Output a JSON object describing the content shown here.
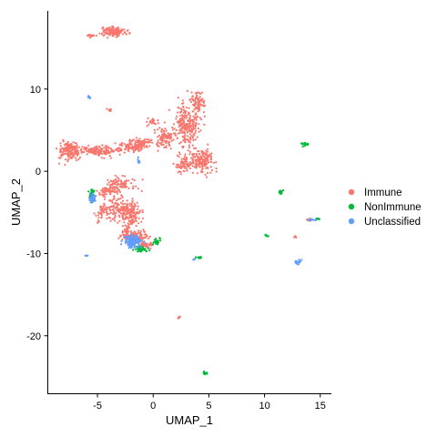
{
  "chart_data": {
    "type": "scatter",
    "xlabel": "UMAP_1",
    "ylabel": "UMAP_2",
    "xlim": [
      -9.5,
      16
    ],
    "ylim": [
      -27,
      19.5
    ],
    "x_ticks": [
      -5,
      0,
      5,
      10,
      15
    ],
    "y_ticks": [
      10,
      0,
      -10,
      -20
    ],
    "grid": false,
    "legend_position": "right",
    "series": [
      {
        "name": "Immune",
        "color": "#F8766D",
        "clusters": [
          {
            "x": -3.5,
            "y": 17,
            "sx": 0.9,
            "sy": 0.5,
            "n": 140
          },
          {
            "x": -5.5,
            "y": 16.5,
            "sx": 0.5,
            "sy": 0.15,
            "n": 20
          },
          {
            "x": -4.0,
            "y": 7.5,
            "sx": 0.2,
            "sy": 0.2,
            "n": 8
          },
          {
            "x": -7.5,
            "y": 2.5,
            "sx": 0.9,
            "sy": 1.0,
            "n": 160
          },
          {
            "x": -5.0,
            "y": 2.5,
            "sx": 1.5,
            "sy": 0.5,
            "n": 140
          },
          {
            "x": -2.0,
            "y": 3.0,
            "sx": 1.2,
            "sy": 0.6,
            "n": 100
          },
          {
            "x": -1.0,
            "y": 3.5,
            "sx": 0.8,
            "sy": 0.5,
            "n": 60
          },
          {
            "x": 1.0,
            "y": 4.0,
            "sx": 0.9,
            "sy": 1.2,
            "n": 90
          },
          {
            "x": 3.0,
            "y": 5.5,
            "sx": 1.0,
            "sy": 2.5,
            "n": 220
          },
          {
            "x": 4.0,
            "y": 8.5,
            "sx": 0.6,
            "sy": 1.0,
            "n": 80
          },
          {
            "x": 4.3,
            "y": 1.2,
            "sx": 1.2,
            "sy": 1.2,
            "n": 180
          },
          {
            "x": 2.5,
            "y": 1.0,
            "sx": 0.6,
            "sy": 1.0,
            "n": 50
          },
          {
            "x": -3.0,
            "y": -1.5,
            "sx": 1.4,
            "sy": 0.8,
            "n": 90
          },
          {
            "x": -4.0,
            "y": -2.5,
            "sx": 1.0,
            "sy": 0.5,
            "n": 60
          },
          {
            "x": -3.0,
            "y": -4.5,
            "sx": 1.4,
            "sy": 1.2,
            "n": 160
          },
          {
            "x": -2.0,
            "y": -5.5,
            "sx": 0.8,
            "sy": 1.2,
            "n": 100
          },
          {
            "x": -4.5,
            "y": -5.0,
            "sx": 0.5,
            "sy": 1.0,
            "n": 40
          },
          {
            "x": -1.5,
            "y": -8.0,
            "sx": 0.9,
            "sy": 0.5,
            "n": 110
          },
          {
            "x": -2.5,
            "y": -7.5,
            "sx": 0.5,
            "sy": 0.6,
            "n": 40
          },
          {
            "x": -0.8,
            "y": -9.0,
            "sx": 0.6,
            "sy": 0.4,
            "n": 50
          },
          {
            "x": 2.3,
            "y": -17.8,
            "sx": 0.2,
            "sy": 0.1,
            "n": 10
          },
          {
            "x": 12.8,
            "y": -8.0,
            "sx": 0.3,
            "sy": 0.1,
            "n": 6
          },
          {
            "x": 14.0,
            "y": -5.9,
            "sx": 0.3,
            "sy": 0.1,
            "n": 8
          },
          {
            "x": 0.0,
            "y": 6.0,
            "sx": 0.5,
            "sy": 0.5,
            "n": 20
          }
        ]
      },
      {
        "name": "NonImmune",
        "color": "#00BA38",
        "clusters": [
          {
            "x": -5.5,
            "y": -2.8,
            "sx": 0.2,
            "sy": 0.6,
            "n": 50
          },
          {
            "x": -1.0,
            "y": -9.5,
            "sx": 0.5,
            "sy": 0.3,
            "n": 50
          },
          {
            "x": 0.3,
            "y": -8.5,
            "sx": 0.3,
            "sy": 0.3,
            "n": 25
          },
          {
            "x": 4.0,
            "y": -10.5,
            "sx": 0.3,
            "sy": 0.15,
            "n": 15
          },
          {
            "x": 4.6,
            "y": -24.5,
            "sx": 0.2,
            "sy": 0.2,
            "n": 12
          },
          {
            "x": 11.5,
            "y": -2.5,
            "sx": 0.15,
            "sy": 0.25,
            "n": 15
          },
          {
            "x": 13.6,
            "y": 3.3,
            "sx": 0.3,
            "sy": 0.2,
            "n": 20
          },
          {
            "x": 10.2,
            "y": -7.8,
            "sx": 0.2,
            "sy": 0.1,
            "n": 8
          },
          {
            "x": 14.8,
            "y": -5.8,
            "sx": 0.2,
            "sy": 0.1,
            "n": 8
          }
        ]
      },
      {
        "name": "Unclassified",
        "color": "#619CFF",
        "clusters": [
          {
            "x": -1.8,
            "y": -8.5,
            "sx": 0.8,
            "sy": 0.6,
            "n": 140
          },
          {
            "x": -5.4,
            "y": -3.3,
            "sx": 0.25,
            "sy": 0.6,
            "n": 40
          },
          {
            "x": -5.8,
            "y": 9.0,
            "sx": 0.15,
            "sy": 0.15,
            "n": 8
          },
          {
            "x": -6.0,
            "y": -10.2,
            "sx": 0.1,
            "sy": 0.1,
            "n": 4
          },
          {
            "x": -1.3,
            "y": 1.3,
            "sx": 0.1,
            "sy": 0.3,
            "n": 6
          },
          {
            "x": 13.0,
            "y": -11.0,
            "sx": 0.3,
            "sy": 0.25,
            "n": 25
          },
          {
            "x": 14.2,
            "y": -5.9,
            "sx": 0.25,
            "sy": 0.1,
            "n": 10
          },
          {
            "x": 3.7,
            "y": -10.7,
            "sx": 0.1,
            "sy": 0.1,
            "n": 4
          }
        ]
      }
    ]
  }
}
